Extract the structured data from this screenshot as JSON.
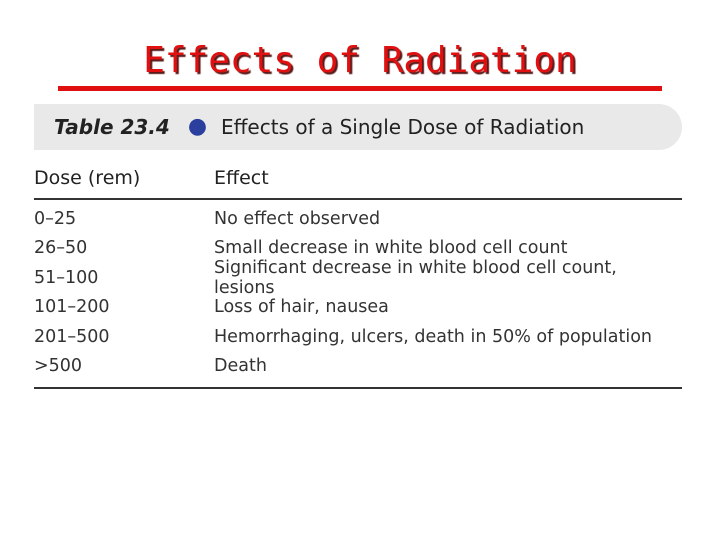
{
  "slide": {
    "title": "Effects of Radiation"
  },
  "table": {
    "number": "Table 23.4",
    "caption": "Effects of a Single Dose of Radiation",
    "headers": {
      "dose": "Dose (rem)",
      "effect": "Effect"
    },
    "rows": [
      {
        "dose": "0–25",
        "effect": "No effect observed"
      },
      {
        "dose": "26–50",
        "effect": "Small decrease in white blood cell count"
      },
      {
        "dose": "51–100",
        "effect": "Significant decrease in white blood cell count, lesions"
      },
      {
        "dose": "101–200",
        "effect": "Loss of hair, nausea"
      },
      {
        "dose": "201–500",
        "effect": "Hemorrhaging, ulcers, death in 50% of population"
      },
      {
        "dose": ">500",
        "effect": "Death"
      }
    ]
  },
  "colors": {
    "title": "#e01010",
    "bullet": "#2a3f9e",
    "banner": "#e9e9e9"
  }
}
